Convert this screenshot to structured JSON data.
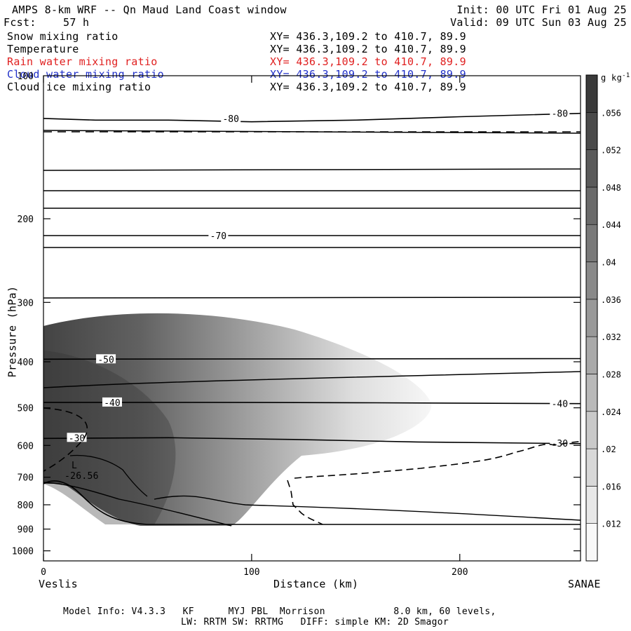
{
  "header": {
    "title": "AMPS 8-km WRF -- Qn Maud Land Coast window",
    "fcst_label": "Fcst:",
    "fcst_value": "57 h",
    "init": "Init: 00 UTC Fri 01 Aug 25",
    "valid": "Valid: 09 UTC Sun 03 Aug 25"
  },
  "fields": [
    {
      "name": "Snow mixing ratio",
      "xy": "XY= 436.3,109.2 to 410.7, 89.9",
      "color": "#000000"
    },
    {
      "name": "Temperature",
      "xy": "XY= 436.3,109.2 to 410.7, 89.9",
      "color": "#000000"
    },
    {
      "name": "Rain water mixing ratio",
      "xy": "XY= 436.3,109.2 to 410.7, 89.9",
      "color": "#e02020"
    },
    {
      "name": "Cloud water mixing ratio",
      "xy": "XY= 436.3,109.2 to 410.7, 89.9",
      "color": "#2030c8"
    },
    {
      "name": "Cloud ice mixing ratio",
      "xy": "XY= 436.3,109.2 to 410.7, 89.9",
      "color": "#000000"
    }
  ],
  "footer": {
    "line1": "Model Info: V4.3.3   KF      MYJ PBL  Morrison            8.0 km, 60 levels,",
    "line2": "LW: RRTM SW: RRTMG   DIFF: simple KM: 2D Smagor"
  },
  "chart_data": {
    "type": "heatmap",
    "title": "",
    "xlabel": "Distance (km)",
    "ylabel": "Pressure (hPa)",
    "xlim": [
      0,
      258
    ],
    "ylim": [
      1050,
      100
    ],
    "y_scale": "log",
    "x_ticks": [
      0,
      100,
      200
    ],
    "y_ticks": [
      200,
      300,
      400,
      500,
      600,
      700,
      800,
      900,
      1000
    ],
    "y_top_label": "100",
    "x_end_labels": {
      "left": "Veslis",
      "right": "SANAE"
    },
    "colorbar": {
      "units_label": "g kg",
      "units_exp": "-1",
      "ticks": [
        ".012",
        ".016",
        ".02",
        ".024",
        ".028",
        ".032",
        ".036",
        ".04",
        ".044",
        ".048",
        ".052",
        ".056"
      ]
    },
    "temperature_contours": [
      {
        "label": "-80",
        "points": [
          [
            0,
            123
          ],
          [
            25,
            124
          ],
          [
            60,
            124
          ],
          [
            100,
            125
          ],
          [
            150,
            124
          ],
          [
            200,
            122
          ],
          [
            258,
            120
          ]
        ],
        "labels_at": [
          [
            90,
            123
          ],
          [
            248,
            120
          ]
        ]
      },
      {
        "label": "-70",
        "points": [
          [
            0,
            217
          ],
          [
            258,
            217
          ]
        ],
        "labels_at": [
          [
            84,
            217
          ]
        ]
      },
      {
        "label": "-50",
        "points": [
          [
            0,
            395
          ],
          [
            258,
            394
          ]
        ],
        "labels_at": [
          [
            30,
            395
          ]
        ]
      },
      {
        "label": "-40",
        "points": [
          [
            0,
            487
          ],
          [
            80,
            487
          ],
          [
            160,
            488
          ],
          [
            258,
            490
          ]
        ],
        "labels_at": [
          [
            33,
            487
          ],
          [
            248,
            490
          ]
        ]
      },
      {
        "label": "-30",
        "points": [
          [
            0,
            580
          ],
          [
            60,
            578
          ],
          [
            120,
            583
          ],
          [
            180,
            590
          ],
          [
            258,
            595
          ]
        ],
        "labels_at": [
          [
            16,
            578
          ],
          [
            248,
            593
          ]
        ]
      }
    ],
    "annotations": [
      {
        "text": "L",
        "x": 14,
        "p": 865
      },
      {
        "text": "-26.56",
        "x": 14,
        "p": 883
      }
    ]
  }
}
